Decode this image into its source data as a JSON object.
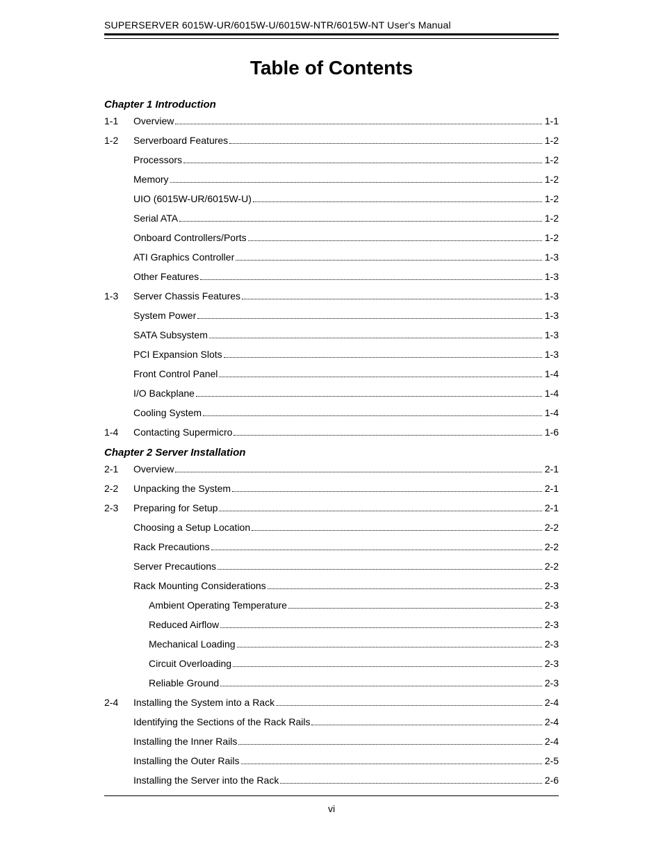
{
  "running_header": "SUPERSERVER 6015W-UR/6015W-U/6015W-NTR/6015W-NT User's Manual",
  "title": "Table of Contents",
  "page_number": "vi",
  "colors": {
    "text": "#000000",
    "background": "#ffffff",
    "rule": "#000000"
  },
  "typography": {
    "body_fontsize_pt": 11,
    "title_fontsize_pt": 22,
    "chapter_fontsize_pt": 12,
    "font_family": "Arial"
  },
  "chapters": [
    {
      "heading": "Chapter 1 Introduction",
      "entries": [
        {
          "num": "1-1",
          "label": "Overview",
          "page": "1-1",
          "indent": 0
        },
        {
          "num": "1-2",
          "label": "Serverboard Features",
          "page": "1-2",
          "indent": 0
        },
        {
          "num": "",
          "label": "Processors",
          "page": "1-2",
          "indent": 1
        },
        {
          "num": "",
          "label": "Memory",
          "page": "1-2",
          "indent": 1
        },
        {
          "num": "",
          "label": "UIO (6015W-UR/6015W-U)",
          "page": "1-2",
          "indent": 1
        },
        {
          "num": "",
          "label": "Serial ATA",
          "page": "1-2",
          "indent": 1
        },
        {
          "num": "",
          "label": "Onboard Controllers/Ports",
          "page": "1-2",
          "indent": 1
        },
        {
          "num": "",
          "label": "ATI Graphics Controller",
          "page": "1-3",
          "indent": 1
        },
        {
          "num": "",
          "label": "Other Features",
          "page": "1-3",
          "indent": 1
        },
        {
          "num": "1-3",
          "label": "Server Chassis Features",
          "page": "1-3",
          "indent": 0
        },
        {
          "num": "",
          "label": "System Power",
          "page": "1-3",
          "indent": 1
        },
        {
          "num": "",
          "label": "SATA Subsystem",
          "page": "1-3",
          "indent": 1
        },
        {
          "num": "",
          "label": "PCI Expansion Slots",
          "page": "1-3",
          "indent": 1
        },
        {
          "num": "",
          "label": "Front Control Panel",
          "page": "1-4",
          "indent": 1
        },
        {
          "num": "",
          "label": "I/O Backplane",
          "page": "1-4",
          "indent": 1
        },
        {
          "num": "",
          "label": "Cooling System",
          "page": "1-4",
          "indent": 1
        },
        {
          "num": "1-4",
          "label": "Contacting Supermicro",
          "page": "1-6",
          "indent": 0
        }
      ]
    },
    {
      "heading": "Chapter 2 Server Installation",
      "entries": [
        {
          "num": "2-1",
          "label": "Overview",
          "page": "2-1",
          "indent": 0
        },
        {
          "num": "2-2",
          "label": "Unpacking the System",
          "page": "2-1",
          "indent": 0
        },
        {
          "num": "2-3",
          "label": "Preparing for Setup",
          "page": "2-1",
          "indent": 0
        },
        {
          "num": "",
          "label": "Choosing a Setup Location",
          "page": "2-2",
          "indent": 1
        },
        {
          "num": "",
          "label": "Rack Precautions",
          "page": "2-2",
          "indent": 1
        },
        {
          "num": "",
          "label": "Server Precautions",
          "page": "2-2",
          "indent": 1
        },
        {
          "num": "",
          "label": "Rack Mounting Considerations",
          "page": "2-3",
          "indent": 1
        },
        {
          "num": "",
          "label": "Ambient Operating Temperature",
          "page": "2-3",
          "indent": 2
        },
        {
          "num": "",
          "label": "Reduced Airflow",
          "page": "2-3",
          "indent": 2
        },
        {
          "num": "",
          "label": "Mechanical Loading",
          "page": "2-3",
          "indent": 2
        },
        {
          "num": "",
          "label": "Circuit Overloading",
          "page": "2-3",
          "indent": 2
        },
        {
          "num": "",
          "label": "Reliable Ground",
          "page": "2-3",
          "indent": 2
        },
        {
          "num": "2-4",
          "label": "Installing the System into a Rack",
          "page": "2-4",
          "indent": 0
        },
        {
          "num": "",
          "label": "Identifying the Sections of the Rack Rails",
          "page": "2-4",
          "indent": 1
        },
        {
          "num": "",
          "label": "Installing the Inner Rails",
          "page": "2-4",
          "indent": 1
        },
        {
          "num": "",
          "label": "Installing the Outer Rails",
          "page": "2-5",
          "indent": 1
        },
        {
          "num": "",
          "label": "Installing the Server into the Rack",
          "page": "2-6",
          "indent": 1
        }
      ]
    }
  ]
}
